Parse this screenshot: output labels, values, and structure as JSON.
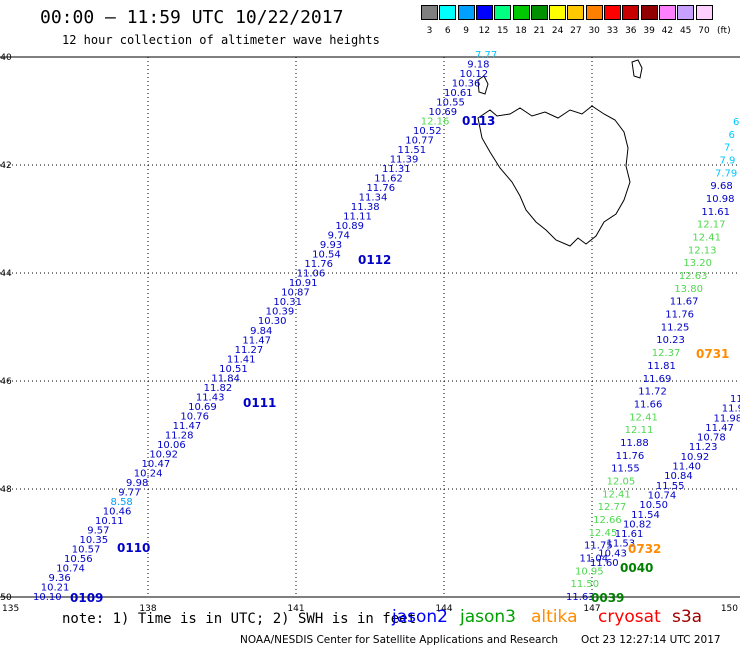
{
  "header": {
    "title": "00:00 – 11:59 UTC 10/22/2017",
    "subtitle": "12 hour collection of altimeter wave heights"
  },
  "legend": {
    "unit": "(ft)",
    "bins": [
      {
        "label": "3",
        "color": "#7f7f7f"
      },
      {
        "label": "6",
        "color": "#00ffff"
      },
      {
        "label": "9",
        "color": "#00a0ff"
      },
      {
        "label": "12",
        "color": "#0000ff"
      },
      {
        "label": "15",
        "color": "#00ff80"
      },
      {
        "label": "18",
        "color": "#00c800"
      },
      {
        "label": "21",
        "color": "#009000"
      },
      {
        "label": "24",
        "color": "#ffff00"
      },
      {
        "label": "27",
        "color": "#ffc800"
      },
      {
        "label": "30",
        "color": "#ff8000"
      },
      {
        "label": "33",
        "color": "#ff0000"
      },
      {
        "label": "36",
        "color": "#c80000"
      },
      {
        "label": "39",
        "color": "#900000"
      },
      {
        "label": "42",
        "color": "#ff80ff"
      },
      {
        "label": "45",
        "color": "#c8a0ff"
      },
      {
        "label": "70",
        "color": "#ffd0ff"
      }
    ]
  },
  "map": {
    "lon_range": [
      135,
      150
    ],
    "lat_range": [
      -50,
      -40
    ],
    "lon_ticks": [
      "135",
      "138",
      "141",
      "144",
      "147",
      "150"
    ],
    "lat_ticks": [
      "-40",
      "-42",
      "-44",
      "-46",
      "-48",
      "-50"
    ],
    "grid": "dotted",
    "land_outline": "Tasmania"
  },
  "colors": {
    "jason2_value": "#0000c8",
    "jason3_value": "#50d850",
    "low_value": "#00a0ff",
    "cyan_value": "#00c8ff",
    "pass_orange": "#ff8c00",
    "pass_green": "#008000"
  },
  "tracks": [
    {
      "pass_label": "0109",
      "pass_color": "#0000c8",
      "values": [
        "10.10",
        "10.21",
        "9.36",
        "10.74",
        "10.56",
        "10.57",
        "10.35",
        "9.57",
        "10.11",
        "10.46",
        "8.58",
        "9.77",
        "9.98",
        "10.24",
        "10.47",
        "10.92",
        "10.06",
        "11.28",
        "11.47",
        "10.76",
        "10.69",
        "11.43",
        "11.82",
        "11.84",
        "10.51",
        "11.41",
        "11.27",
        "11.47",
        "9.84",
        "10.30",
        "10.39",
        "10.31",
        "10.87",
        "10.91",
        "11.06",
        "11.76",
        "10.54",
        "9.93",
        "9.74",
        "10.89",
        "11.11",
        "11.38",
        "11.34",
        "11.76",
        "11.62",
        "11.31",
        "11.39",
        "11.51",
        "10.77",
        "10.52",
        "12.16",
        "10.69",
        "10.55",
        "10.61",
        "10.36",
        "10.12",
        "9.18",
        "7.77"
      ],
      "value_colors": {
        "8.58": "#00a0ff",
        "12.16": "#50d850",
        "7.77": "#00c8ff"
      }
    }
  ],
  "pass_labels": [
    {
      "text": "0110",
      "color": "#0000c8"
    },
    {
      "text": "0111",
      "color": "#0000c8"
    },
    {
      "text": "0112",
      "color": "#0000c8"
    },
    {
      "text": "0113",
      "color": "#0000c8"
    },
    {
      "text": "0731",
      "color": "#ff8c00"
    },
    {
      "text": "0732",
      "color": "#ff8c00"
    },
    {
      "text": "0040",
      "color": "#008000"
    },
    {
      "text": "0039",
      "color": "#008000"
    }
  ],
  "east_track_a": {
    "values": [
      "6",
      "6",
      "7.",
      "7.9",
      "7.79",
      "9.68",
      "10.98",
      "11.61",
      "12.17",
      "12.41",
      "12.13",
      "13.20",
      "12.63",
      "13.80",
      "11.67",
      "11.76",
      "11.25",
      "10.23",
      "12.37",
      "11.81",
      "11.69",
      "11.72",
      "11.66",
      "12.41",
      "12.11",
      "11.88",
      "11.76",
      "11.55",
      "12.05",
      "12.41",
      "12.77",
      "12.66",
      "12.45",
      "11.75",
      "11.04",
      "10.95",
      "11.50",
      "11.63"
    ],
    "value_colors": {
      "6": "#00c8ff",
      "7.": "#00c8ff",
      "7.9": "#00c8ff",
      "7.79": "#00c8ff",
      "12.17": "#50d850",
      "12.41": "#50d850",
      "12.13": "#50d850",
      "13.20": "#50d850",
      "12.63": "#50d850",
      "13.80": "#50d850",
      "12.37": "#50d850",
      "12.11": "#50d850",
      "12.05": "#50d850",
      "12.77": "#50d850",
      "12.66": "#50d850",
      "12.45": "#50d850",
      "10.95": "#50d850",
      "11.50": "#50d850"
    }
  },
  "east_track_b": {
    "values": [
      "11",
      "11.9",
      "11.98",
      "11.47",
      "10.78",
      "11.23",
      "10.92",
      "11.40",
      "10.84",
      "11.55",
      "10.74",
      "10.50",
      "11.54",
      "10.82",
      "11.61",
      "11.53",
      "10.43",
      "11.60"
    ],
    "value_colors": {}
  },
  "footer": {
    "note": "note: 1) Time is in UTC; 2) SWH is in feet",
    "credit": "NOAA/NESDIS Center for Satellite Applications and Research",
    "timestamp": "Oct 23 12:27:14 UTC 2017"
  },
  "satellites": [
    {
      "name": "jason2",
      "color": "#0000ff"
    },
    {
      "name": "jason3",
      "color": "#00a000"
    },
    {
      "name": "altika",
      "color": "#ff8c00"
    },
    {
      "name": "cryosat",
      "color": "#ff0000"
    },
    {
      "name": "s3a",
      "color": "#a00000"
    }
  ]
}
